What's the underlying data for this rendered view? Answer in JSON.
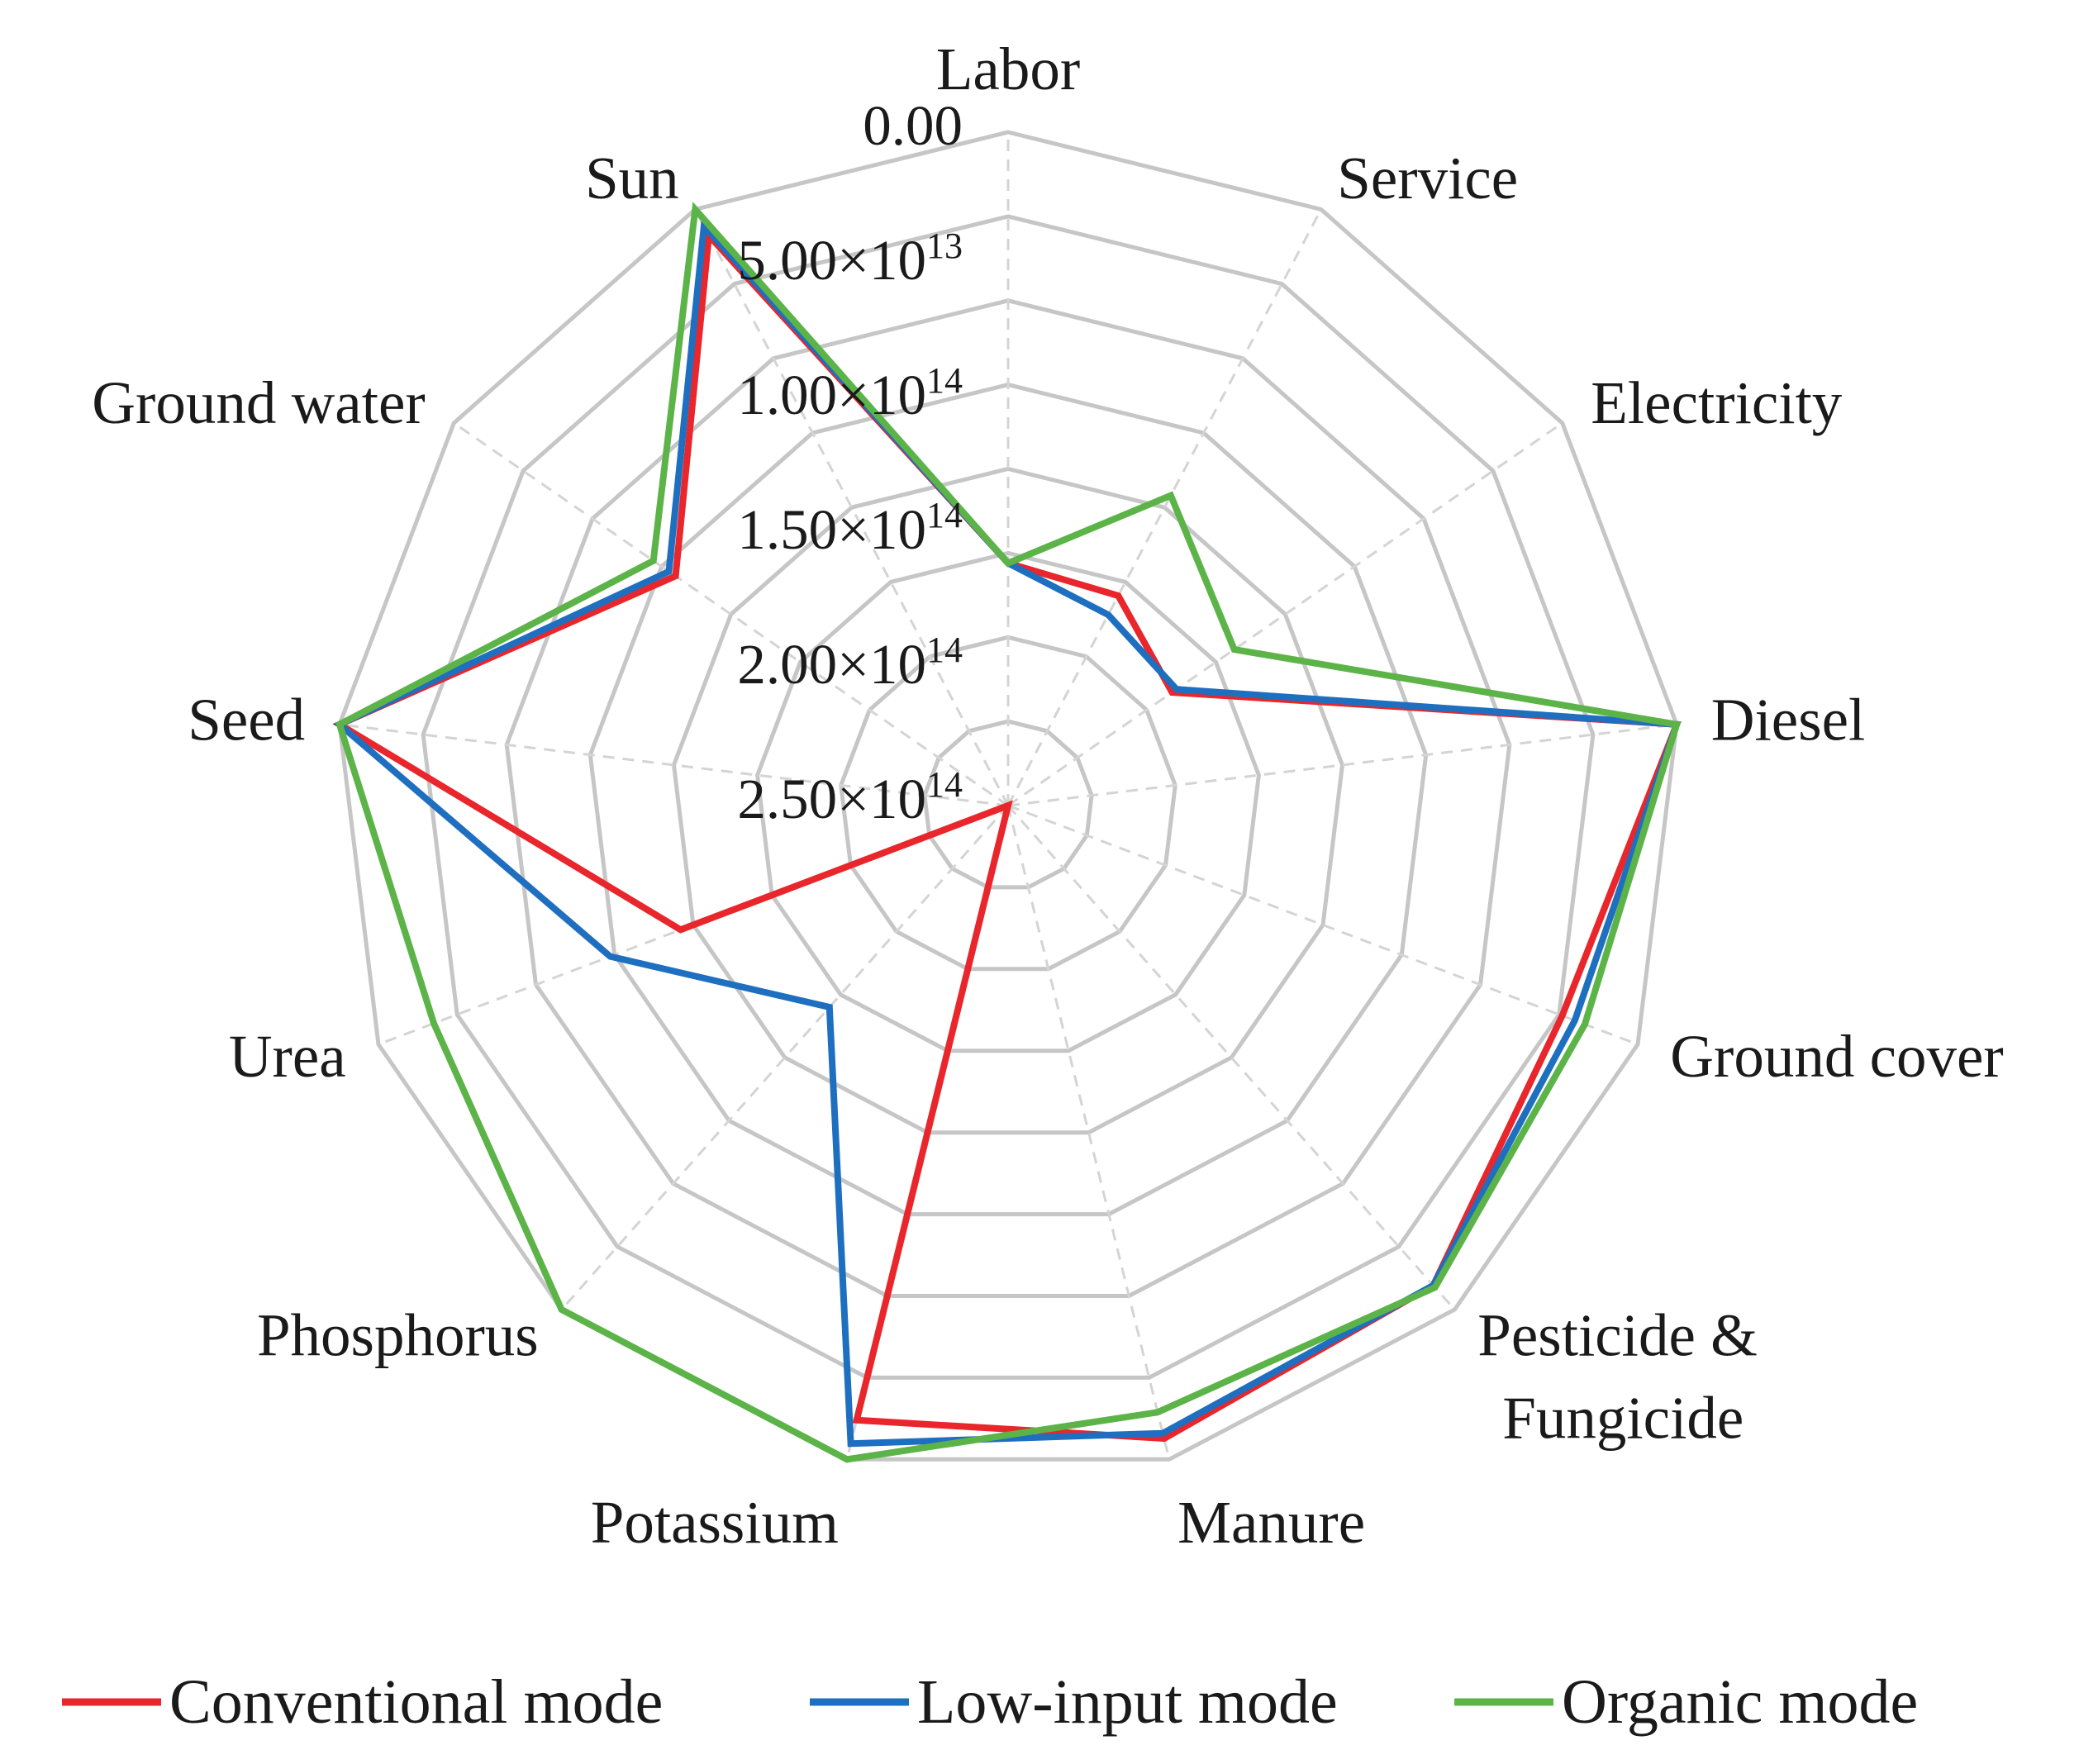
{
  "chart_data": {
    "type": "radar",
    "title": "",
    "axis_direction": "reversed",
    "rlim": [
      0,
      250000000000000.0
    ],
    "ticks": [
      {
        "value": 0,
        "mantissa": "0.00",
        "exp": ""
      },
      {
        "value": 50000000000000.0,
        "mantissa": "5.00×10",
        "exp": "13"
      },
      {
        "value": 100000000000000.0,
        "mantissa": "1.00×10",
        "exp": "14"
      },
      {
        "value": 150000000000000.0,
        "mantissa": "1.50×10",
        "exp": "14"
      },
      {
        "value": 200000000000000.0,
        "mantissa": "2.00×10",
        "exp": "14"
      },
      {
        "value": 250000000000000.0,
        "mantissa": "2.50×10",
        "exp": "14"
      }
    ],
    "categories": [
      {
        "label": "Labor"
      },
      {
        "label": "Service"
      },
      {
        "label": "Electricity"
      },
      {
        "label": "Diesel"
      },
      {
        "label": "Ground cover"
      },
      {
        "label": "Pesticide &",
        "label2": "Fungicide"
      },
      {
        "label": "Manure"
      },
      {
        "label": "Potassium"
      },
      {
        "label": "Phosphorus"
      },
      {
        "label": "Urea"
      },
      {
        "label": "Seed"
      },
      {
        "label": "Ground water"
      },
      {
        "label": "Sun"
      }
    ],
    "series": [
      {
        "name": "Conventional mode",
        "color": "#e8262b",
        "values": [
          160000000000000.0,
          162000000000000.0,
          176000000000000.0,
          0,
          30000000000000.0,
          12000000000000.0,
          8000000000000.0,
          15000000000000.0,
          250000000000000.0,
          120000000000000.0,
          0,
          100000000000000.0,
          11000000000000.0
        ]
      },
      {
        "name": "Low-input mode",
        "color": "#1f6fc0",
        "values": [
          160000000000000.0,
          170000000000000.0,
          174000000000000.0,
          0,
          25000000000000.0,
          12000000000000.0,
          10000000000000.0,
          6000000000000.0,
          150000000000000.0,
          92000000000000.0,
          0,
          97000000000000.0,
          7000000000000.0
        ]
      },
      {
        "name": "Organic mode",
        "color": "#5cb449",
        "values": [
          160000000000000.0,
          120000000000000.0,
          148000000000000.0,
          0,
          21000000000000.0,
          11000000000000.0,
          18000000000000.0,
          0,
          0,
          22000000000000.0,
          0,
          90000000000000.0,
          0
        ]
      }
    ]
  }
}
